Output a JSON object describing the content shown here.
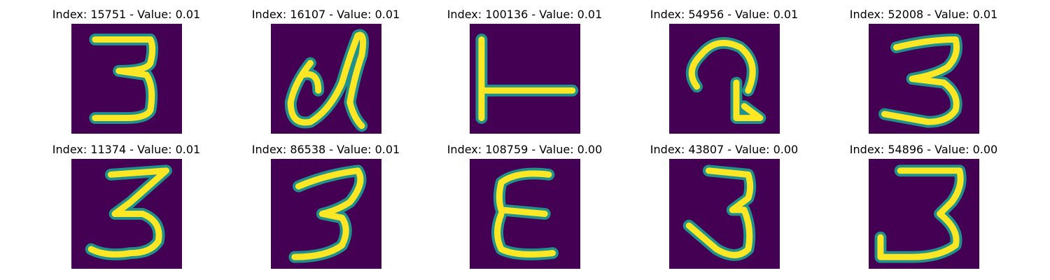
{
  "colors": {
    "background": "#440154",
    "stroke_outer": "#21918c",
    "stroke_mid": "#5ec962",
    "stroke_core": "#fde725"
  },
  "panels": [
    {
      "title": "Index: 15751 - Value: 0.01",
      "glyph": "3"
    },
    {
      "title": "Index: 16107 - Value: 0.01",
      "glyph": "a-loop"
    },
    {
      "title": "Index: 100136 - Value: 0.01",
      "glyph": "tee"
    },
    {
      "title": "Index: 54956 - Value: 0.01",
      "glyph": "loop-hook"
    },
    {
      "title": "Index: 52008 - Value: 0.01",
      "glyph": "3"
    },
    {
      "title": "Index: 11374 - Value: 0.01",
      "glyph": "3"
    },
    {
      "title": "Index: 86538 - Value: 0.01",
      "glyph": "3"
    },
    {
      "title": "Index: 108759 - Value: 0.00",
      "glyph": "E"
    },
    {
      "title": "Index: 43807 - Value: 0.00",
      "glyph": "3"
    },
    {
      "title": "Index: 54896 - Value: 0.00",
      "glyph": "3"
    }
  ]
}
